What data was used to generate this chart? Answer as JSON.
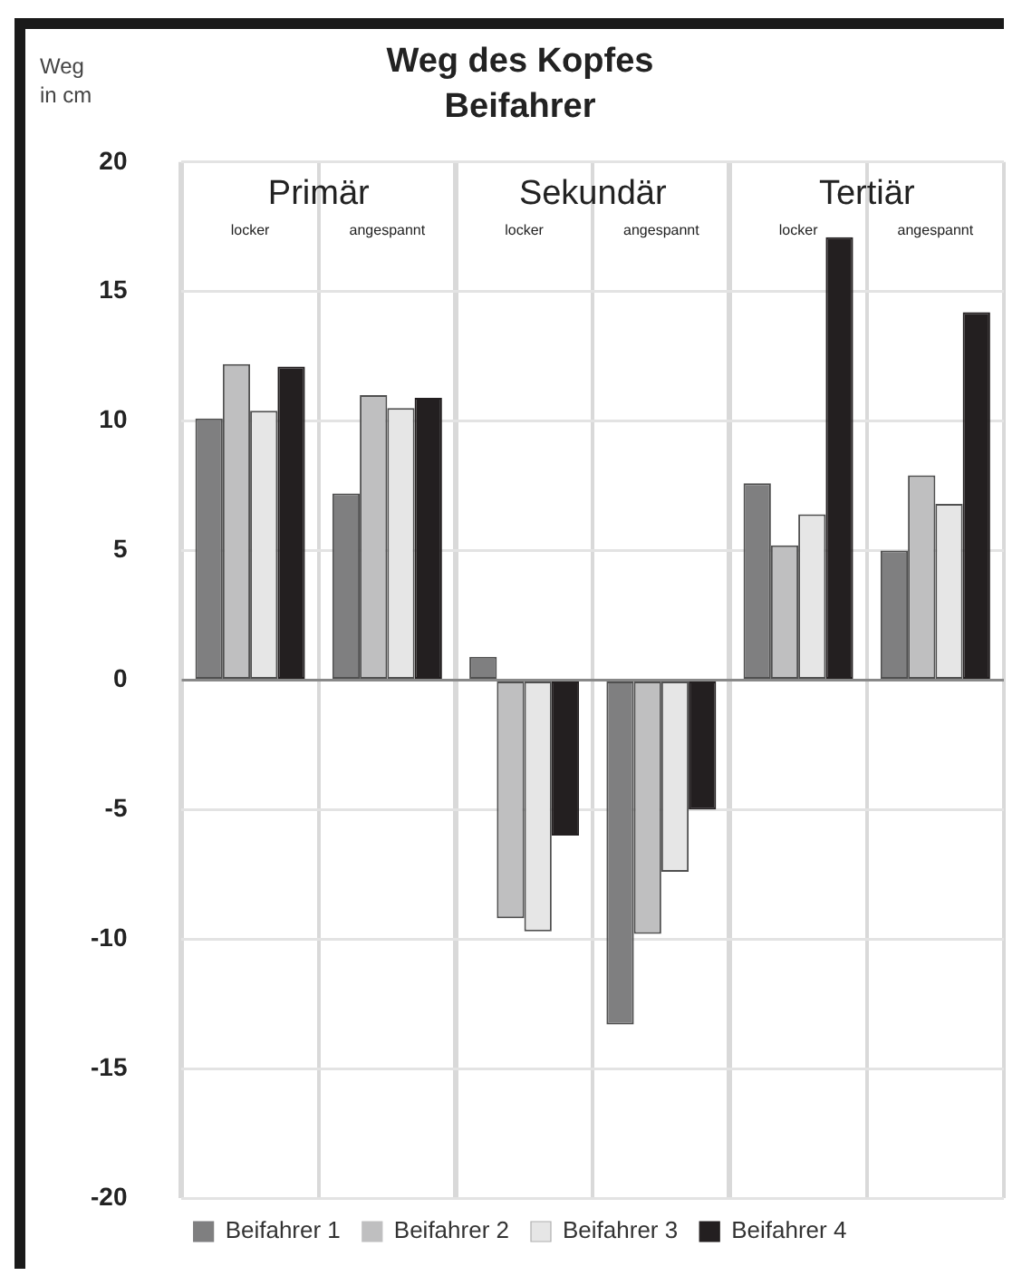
{
  "chart_data": {
    "type": "bar",
    "title": "Weg des Kopfes\nBeifahrer",
    "ylabel": "Weg\nin cm",
    "categories": [
      "locker",
      "angespannt",
      "locker",
      "angespannt",
      "locker",
      "angespannt"
    ],
    "series": [
      {
        "name": "Beifahrer 1",
        "color": "#7f7f80",
        "values": [
          10.1,
          7.2,
          0.9,
          -13.3,
          7.6,
          5.0
        ]
      },
      {
        "name": "Beifahrer 2",
        "color": "#bfbfc0",
        "values": [
          12.2,
          11.0,
          -9.2,
          -9.8,
          5.2,
          7.9
        ]
      },
      {
        "name": "Beifahrer 3",
        "color": "#e6e6e6",
        "values": [
          10.4,
          10.5,
          -9.7,
          -7.4,
          6.4,
          6.8
        ]
      },
      {
        "name": "Beifahrer 4",
        "color": "#231f20",
        "values": [
          12.1,
          10.9,
          -6.0,
          -5.0,
          17.1,
          14.2
        ]
      }
    ],
    "annotations": [
      "Primär",
      "Sekundär",
      "Tertiär"
    ],
    "ylim": [
      -20,
      20
    ],
    "yticks": [
      -20,
      -15,
      -10,
      -5,
      0,
      5,
      10,
      15,
      20
    ],
    "grid": true,
    "legend": "bottom"
  }
}
